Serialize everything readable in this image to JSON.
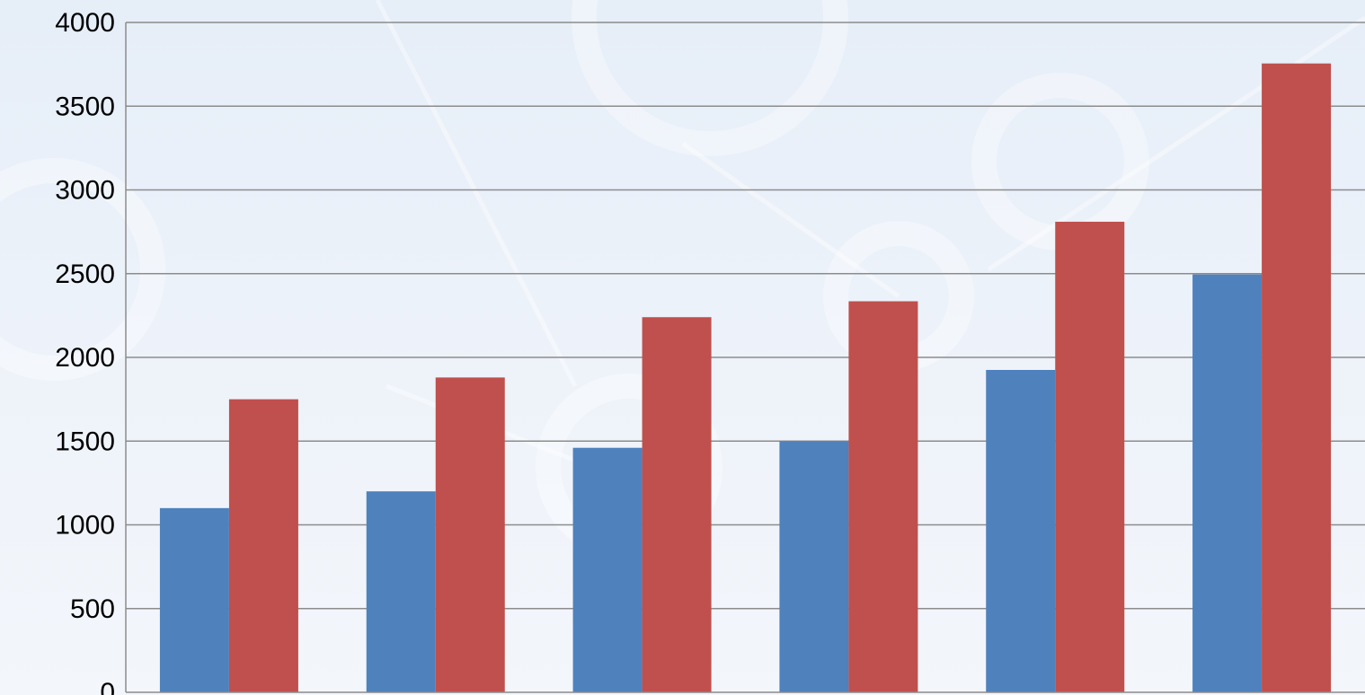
{
  "chart_data": {
    "type": "bar",
    "title": "",
    "xlabel": "",
    "ylabel": "",
    "categories": [
      "",
      "",
      "",
      "",
      "",
      ""
    ],
    "series": [
      {
        "values": [
          1100,
          1200,
          1460,
          1500,
          1925,
          2495
        ],
        "color": "#4f81bd"
      },
      {
        "values": [
          1750,
          1880,
          2240,
          2335,
          2810,
          3755
        ],
        "color": "#c0504d"
      }
    ],
    "ylim": [
      0,
      4000
    ],
    "yticks": [
      0,
      500,
      1000,
      1500,
      2000,
      2500,
      3000,
      3500,
      4000
    ],
    "grid": true,
    "legend": "none"
  },
  "colors": {
    "gridline": "#8c8c8c",
    "axis": "#8c8c8c",
    "background_decoration": "#ffffff"
  }
}
